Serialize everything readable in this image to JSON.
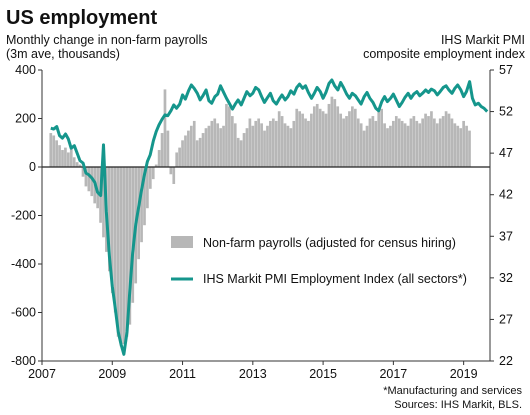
{
  "chart_data": {
    "type": "bar+line",
    "title": "US employment",
    "left_axis_label_lines": [
      "Monthly change in non-farm payrolls",
      "(3m ave, thousands)"
    ],
    "right_axis_label_lines": [
      "IHS Markit  PMI",
      "composite employment index"
    ],
    "x_ticks": [
      "2007",
      "2009",
      "2011",
      "2013",
      "2015",
      "2017",
      "2019"
    ],
    "x_range": [
      2007.0,
      2019.75
    ],
    "y_left_ticks": [
      400,
      200,
      0,
      -200,
      -400,
      -600,
      -800
    ],
    "y_left_range": [
      -800,
      400
    ],
    "y_right_ticks": [
      57,
      52,
      47,
      42,
      37,
      32,
      27,
      22
    ],
    "y_right_range": [
      22,
      57
    ],
    "legend_position": "center-right",
    "grid": false,
    "colors": {
      "bars": "#b7b7b7",
      "line": "#15968c",
      "zero_line": "#222222"
    },
    "series": [
      {
        "name": "Non-farm payrolls (adjusted for census hiring)",
        "kind": "bar",
        "axis": "left",
        "start": 2007.25,
        "step_months": 1,
        "values": [
          140,
          130,
          110,
          90,
          70,
          80,
          60,
          80,
          40,
          20,
          10,
          -40,
          -80,
          -100,
          -120,
          -150,
          -170,
          -230,
          -290,
          -350,
          -430,
          -520,
          -600,
          -700,
          -740,
          -730,
          -700,
          -650,
          -560,
          -480,
          -380,
          -310,
          -240,
          -170,
          -90,
          -50,
          10,
          70,
          140,
          320,
          150,
          -30,
          -70,
          60,
          80,
          110,
          130,
          150,
          170,
          190,
          110,
          120,
          140,
          160,
          170,
          190,
          200,
          180,
          160,
          170,
          260,
          250,
          210,
          180,
          120,
          110,
          140,
          160,
          200,
          170,
          190,
          200,
          180,
          150,
          170,
          190,
          200,
          190,
          230,
          210,
          180,
          170,
          160,
          190,
          240,
          230,
          220,
          200,
          190,
          220,
          250,
          260,
          240,
          230,
          220,
          260,
          290,
          280,
          250,
          220,
          200,
          210,
          230,
          250,
          240,
          200,
          180,
          150,
          170,
          200,
          210,
          190,
          230,
          240,
          180,
          160,
          170,
          190,
          210,
          200,
          190,
          180,
          170,
          200,
          210,
          190,
          180,
          200,
          220,
          210,
          230,
          200,
          180,
          200,
          210,
          230,
          220,
          200,
          180,
          170,
          160,
          190,
          170,
          150
        ]
      },
      {
        "name": "IHS Markit PMI Employment Index (all sectors*)",
        "kind": "line",
        "axis": "right",
        "points": [
          [
            2007.25,
            50.0
          ],
          [
            2007.33,
            49.9
          ],
          [
            2007.42,
            50.2
          ],
          [
            2007.5,
            49.1
          ],
          [
            2007.58,
            48.8
          ],
          [
            2007.67,
            49.3
          ],
          [
            2007.75,
            48.7
          ],
          [
            2007.83,
            47.6
          ],
          [
            2007.92,
            47.9
          ],
          [
            2008.0,
            47.0
          ],
          [
            2008.08,
            46.1
          ],
          [
            2008.17,
            45.8
          ],
          [
            2008.25,
            44.6
          ],
          [
            2008.33,
            44.4
          ],
          [
            2008.42,
            44.0
          ],
          [
            2008.5,
            43.5
          ],
          [
            2008.58,
            42.3
          ],
          [
            2008.67,
            41.9
          ],
          [
            2008.75,
            48.0
          ],
          [
            2008.83,
            40.0
          ],
          [
            2008.92,
            34.5
          ],
          [
            2009.0,
            31.0
          ],
          [
            2009.08,
            28.5
          ],
          [
            2009.17,
            25.5
          ],
          [
            2009.25,
            24.0
          ],
          [
            2009.33,
            22.8
          ],
          [
            2009.42,
            25.5
          ],
          [
            2009.5,
            30.5
          ],
          [
            2009.58,
            35.0
          ],
          [
            2009.67,
            38.5
          ],
          [
            2009.75,
            40.5
          ],
          [
            2009.83,
            42.5
          ],
          [
            2009.92,
            44.5
          ],
          [
            2010.0,
            46.0
          ],
          [
            2010.08,
            46.8
          ],
          [
            2010.17,
            48.5
          ],
          [
            2010.25,
            49.6
          ],
          [
            2010.33,
            50.4
          ],
          [
            2010.42,
            51.1
          ],
          [
            2010.5,
            51.6
          ],
          [
            2010.58,
            51.5
          ],
          [
            2010.67,
            52.1
          ],
          [
            2010.75,
            52.8
          ],
          [
            2010.83,
            52.4
          ],
          [
            2010.92,
            52.9
          ],
          [
            2011.0,
            54.0
          ],
          [
            2011.08,
            53.5
          ],
          [
            2011.17,
            54.5
          ],
          [
            2011.25,
            55.2
          ],
          [
            2011.33,
            54.8
          ],
          [
            2011.42,
            54.2
          ],
          [
            2011.5,
            53.4
          ],
          [
            2011.58,
            53.9
          ],
          [
            2011.67,
            54.6
          ],
          [
            2011.75,
            53.3
          ],
          [
            2011.83,
            53.0
          ],
          [
            2011.92,
            53.8
          ],
          [
            2012.0,
            54.1
          ],
          [
            2012.08,
            55.1
          ],
          [
            2012.17,
            54.3
          ],
          [
            2012.25,
            53.6
          ],
          [
            2012.33,
            53.0
          ],
          [
            2012.42,
            52.3
          ],
          [
            2012.5,
            52.9
          ],
          [
            2012.58,
            53.4
          ],
          [
            2012.67,
            52.8
          ],
          [
            2012.75,
            53.6
          ],
          [
            2012.83,
            54.4
          ],
          [
            2012.92,
            53.9
          ],
          [
            2013.0,
            54.2
          ],
          [
            2013.08,
            54.9
          ],
          [
            2013.17,
            54.6
          ],
          [
            2013.25,
            53.8
          ],
          [
            2013.33,
            53.1
          ],
          [
            2013.42,
            53.7
          ],
          [
            2013.5,
            54.2
          ],
          [
            2013.58,
            53.3
          ],
          [
            2013.67,
            52.9
          ],
          [
            2013.75,
            53.5
          ],
          [
            2013.83,
            54.0
          ],
          [
            2013.92,
            53.4
          ],
          [
            2014.0,
            53.8
          ],
          [
            2014.08,
            54.5
          ],
          [
            2014.17,
            54.1
          ],
          [
            2014.25,
            54.9
          ],
          [
            2014.33,
            55.3
          ],
          [
            2014.42,
            54.8
          ],
          [
            2014.5,
            55.1
          ],
          [
            2014.58,
            54.3
          ],
          [
            2014.67,
            53.6
          ],
          [
            2014.75,
            54.2
          ],
          [
            2014.83,
            54.9
          ],
          [
            2014.92,
            54.4
          ],
          [
            2015.0,
            53.6
          ],
          [
            2015.08,
            54.3
          ],
          [
            2015.17,
            55.4
          ],
          [
            2015.25,
            55.8
          ],
          [
            2015.33,
            55.1
          ],
          [
            2015.42,
            54.6
          ],
          [
            2015.5,
            55.5
          ],
          [
            2015.58,
            54.9
          ],
          [
            2015.67,
            54.1
          ],
          [
            2015.75,
            53.6
          ],
          [
            2015.83,
            54.2
          ],
          [
            2015.92,
            53.9
          ],
          [
            2016.0,
            53.4
          ],
          [
            2016.08,
            52.9
          ],
          [
            2016.17,
            53.8
          ],
          [
            2016.25,
            54.3
          ],
          [
            2016.33,
            53.6
          ],
          [
            2016.42,
            53.1
          ],
          [
            2016.5,
            52.4
          ],
          [
            2016.58,
            52.1
          ],
          [
            2016.67,
            53.2
          ],
          [
            2016.75,
            53.8
          ],
          [
            2016.83,
            53.2
          ],
          [
            2016.92,
            53.6
          ],
          [
            2017.0,
            54.1
          ],
          [
            2017.08,
            53.4
          ],
          [
            2017.17,
            52.6
          ],
          [
            2017.25,
            53.1
          ],
          [
            2017.33,
            53.7
          ],
          [
            2017.42,
            54.2
          ],
          [
            2017.5,
            53.6
          ],
          [
            2017.58,
            54.1
          ],
          [
            2017.67,
            54.4
          ],
          [
            2017.75,
            53.9
          ],
          [
            2017.83,
            54.2
          ],
          [
            2017.92,
            54.6
          ],
          [
            2018.0,
            54.3
          ],
          [
            2018.08,
            54.7
          ],
          [
            2018.17,
            54.5
          ],
          [
            2018.25,
            54.0
          ],
          [
            2018.33,
            54.4
          ],
          [
            2018.42,
            54.9
          ],
          [
            2018.5,
            55.1
          ],
          [
            2018.58,
            54.6
          ],
          [
            2018.67,
            54.2
          ],
          [
            2018.75,
            54.8
          ],
          [
            2018.83,
            55.2
          ],
          [
            2018.92,
            54.6
          ],
          [
            2019.0,
            53.8
          ],
          [
            2019.08,
            54.4
          ],
          [
            2019.17,
            55.6
          ],
          [
            2019.25,
            53.6
          ],
          [
            2019.33,
            52.8
          ],
          [
            2019.42,
            53.0
          ],
          [
            2019.5,
            52.6
          ],
          [
            2019.58,
            52.4
          ],
          [
            2019.67,
            52.0
          ]
        ]
      }
    ],
    "notes": [
      "*Manufacturing and services",
      "Sources: IHS Markit, BLS."
    ]
  }
}
